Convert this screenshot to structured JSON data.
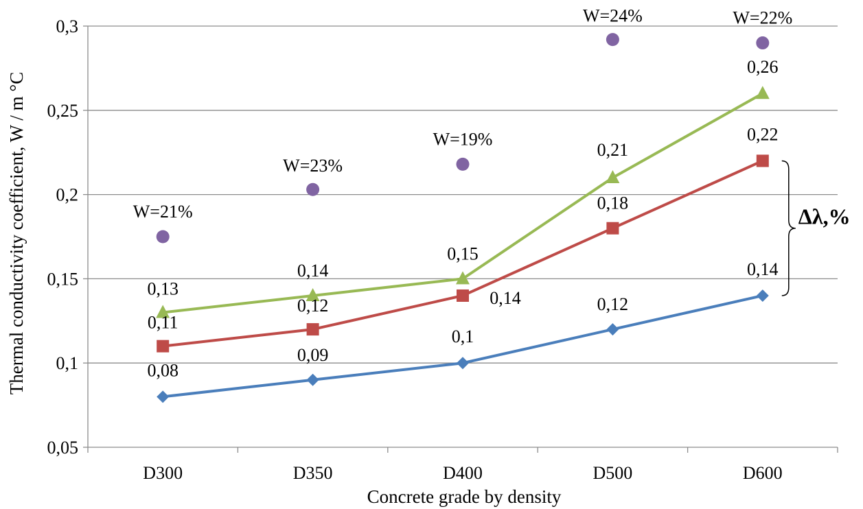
{
  "chart_data": {
    "type": "line",
    "title": "",
    "xlabel": "Concrete grade by density",
    "ylabel": "Thermal conductivity coefficient, W / m °C",
    "categories": [
      "D300",
      "D350",
      "D400",
      "D500",
      "D600"
    ],
    "ylim": [
      0.05,
      0.3
    ],
    "yticks": [
      0.05,
      0.1,
      0.15,
      0.2,
      0.25,
      0.3
    ],
    "ytick_labels": [
      "0,05",
      "0,1",
      "0,15",
      "0,2",
      "0,25",
      "0,3"
    ],
    "grid": true,
    "legend": "none",
    "series": [
      {
        "color": "#4a7ebb",
        "marker": "diamond",
        "values": [
          0.08,
          0.09,
          0.1,
          0.12,
          0.14
        ],
        "labels": [
          "0,08",
          "0,09",
          "0,1",
          "0,12",
          "0,14"
        ]
      },
      {
        "color": "#be4b48",
        "marker": "square",
        "values": [
          0.11,
          0.12,
          0.14,
          0.18,
          0.22
        ],
        "labels": [
          "0,11",
          "0,12",
          "0,14",
          "0,18",
          "0,22"
        ]
      },
      {
        "color": "#98b954",
        "marker": "triangle",
        "values": [
          0.13,
          0.14,
          0.15,
          0.21,
          0.26
        ],
        "labels": [
          "0,13",
          "0,14",
          "0,15",
          "0,21",
          "0,26"
        ]
      },
      {
        "color": "#8064a2",
        "marker": "circle",
        "line": false,
        "values": [
          0.175,
          0.203,
          0.218,
          0.292,
          0.29
        ],
        "labels": [
          "W=21%",
          "W=23%",
          "W=19%",
          "W=24%",
          "W=22%"
        ]
      }
    ],
    "annotations": [
      {
        "text": "Δλ,%",
        "type": "brace",
        "category": "D600",
        "from": 0.14,
        "to": 0.22
      }
    ]
  }
}
